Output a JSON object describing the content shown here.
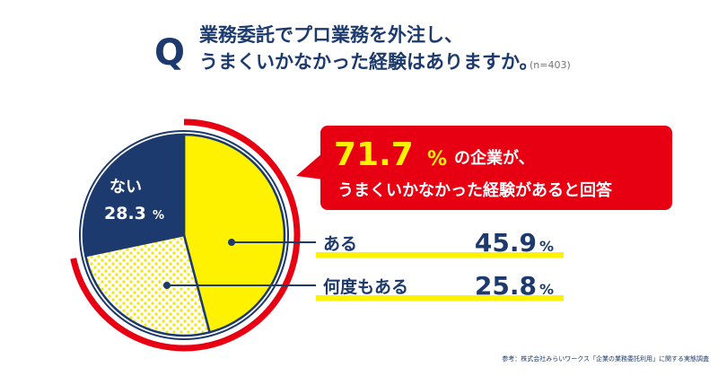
{
  "chart_data": {
    "type": "pie",
    "question_mark": "Q",
    "title_lines": [
      "業務委託でプロ業務を外注し、",
      "うまくいかなかった経験はありますか。"
    ],
    "sample_size": "(n=403)",
    "categories": [
      "ある",
      "何度もある",
      "ない"
    ],
    "values": [
      45.9,
      25.8,
      28.3
    ],
    "unit": "%",
    "colors": [
      "#fff200",
      "dots",
      "#1d3a6e"
    ],
    "callout": {
      "value": 71.7,
      "text_after": "の企業が、",
      "line2": "うまくいかなかった経験があると回答",
      "color": "#e60012"
    },
    "source": "参考：株式会社みらいワークス「企業の業務委託利用」に関する実態調査"
  }
}
